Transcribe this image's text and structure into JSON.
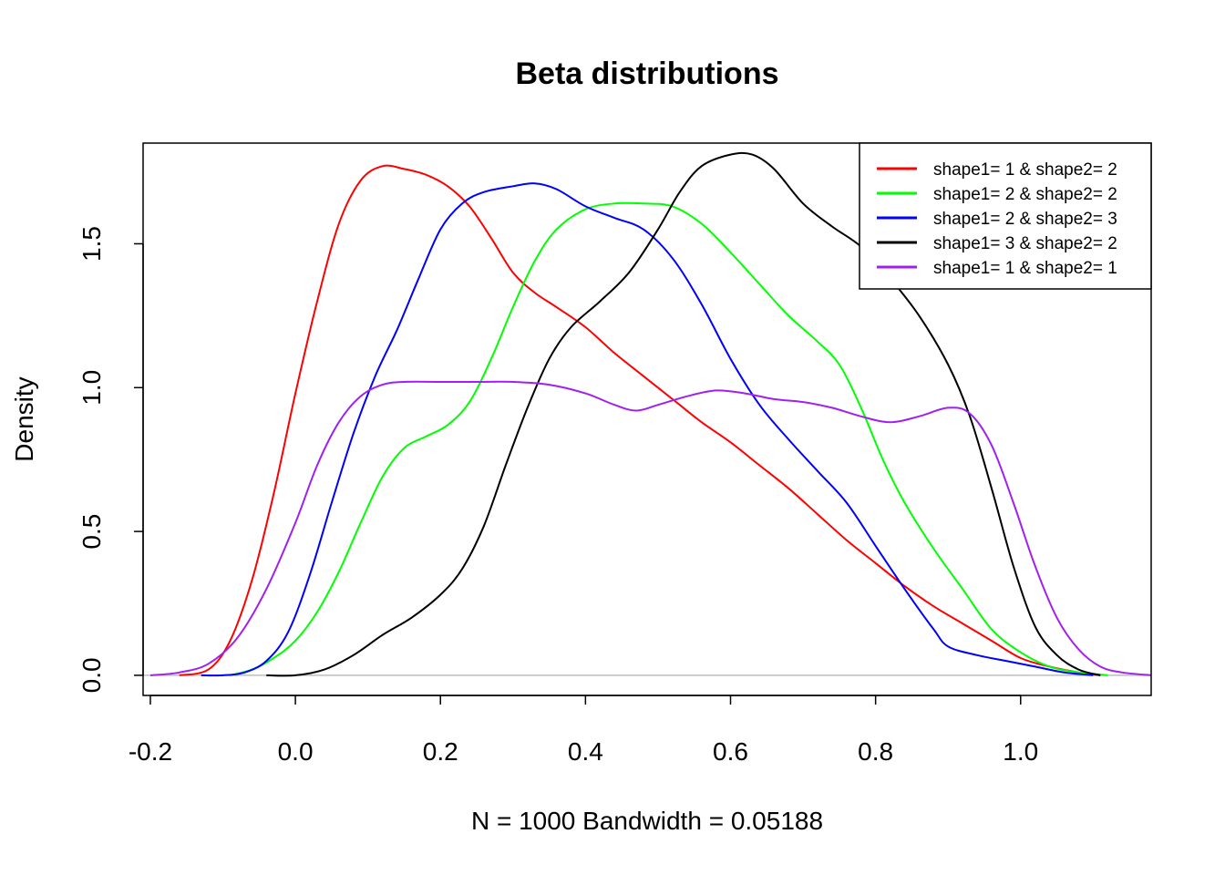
{
  "chart_data": {
    "type": "line",
    "title": "Beta distributions",
    "xlabel": "N = 1000   Bandwidth = 0.05188",
    "ylabel": "Density",
    "xlim": [
      -0.21,
      1.18
    ],
    "ylim": [
      -0.07,
      1.85
    ],
    "xticks": [
      -0.2,
      0.0,
      0.2,
      0.4,
      0.6,
      0.8,
      1.0
    ],
    "xtick_labels": [
      "-0.2",
      "0.0",
      "0.2",
      "0.4",
      "0.6",
      "0.8",
      "1.0"
    ],
    "yticks": [
      0.0,
      0.5,
      1.0,
      1.5
    ],
    "ytick_labels": [
      "0.0",
      "0.5",
      "1.0",
      "1.5"
    ],
    "baseline": 0,
    "grid": false,
    "legend_position": "top-right",
    "series": [
      {
        "name": "shape1= 1 & shape2= 2",
        "color": "#ff0000",
        "points": [
          [
            -0.16,
            0
          ],
          [
            -0.12,
            0.02
          ],
          [
            -0.09,
            0.12
          ],
          [
            -0.06,
            0.33
          ],
          [
            -0.03,
            0.63
          ],
          [
            0.0,
            0.98
          ],
          [
            0.03,
            1.3
          ],
          [
            0.06,
            1.57
          ],
          [
            0.09,
            1.72
          ],
          [
            0.12,
            1.77
          ],
          [
            0.15,
            1.76
          ],
          [
            0.18,
            1.74
          ],
          [
            0.21,
            1.7
          ],
          [
            0.24,
            1.63
          ],
          [
            0.27,
            1.52
          ],
          [
            0.3,
            1.4
          ],
          [
            0.33,
            1.33
          ],
          [
            0.36,
            1.28
          ],
          [
            0.4,
            1.21
          ],
          [
            0.44,
            1.12
          ],
          [
            0.48,
            1.04
          ],
          [
            0.52,
            0.96
          ],
          [
            0.56,
            0.88
          ],
          [
            0.6,
            0.81
          ],
          [
            0.64,
            0.73
          ],
          [
            0.68,
            0.65
          ],
          [
            0.72,
            0.56
          ],
          [
            0.76,
            0.47
          ],
          [
            0.8,
            0.39
          ],
          [
            0.84,
            0.31
          ],
          [
            0.88,
            0.24
          ],
          [
            0.92,
            0.18
          ],
          [
            0.96,
            0.12
          ],
          [
            1.0,
            0.06
          ],
          [
            1.04,
            0.03
          ],
          [
            1.08,
            0.01
          ],
          [
            1.11,
            0
          ]
        ]
      },
      {
        "name": "shape1= 2 & shape2= 2",
        "color": "#00ff00",
        "points": [
          [
            -0.09,
            0
          ],
          [
            -0.06,
            0.02
          ],
          [
            -0.03,
            0.06
          ],
          [
            0.0,
            0.12
          ],
          [
            0.03,
            0.22
          ],
          [
            0.06,
            0.36
          ],
          [
            0.09,
            0.53
          ],
          [
            0.12,
            0.69
          ],
          [
            0.15,
            0.79
          ],
          [
            0.18,
            0.83
          ],
          [
            0.21,
            0.87
          ],
          [
            0.24,
            0.95
          ],
          [
            0.27,
            1.1
          ],
          [
            0.3,
            1.28
          ],
          [
            0.33,
            1.44
          ],
          [
            0.36,
            1.55
          ],
          [
            0.4,
            1.62
          ],
          [
            0.44,
            1.64
          ],
          [
            0.48,
            1.64
          ],
          [
            0.52,
            1.63
          ],
          [
            0.56,
            1.57
          ],
          [
            0.6,
            1.47
          ],
          [
            0.64,
            1.36
          ],
          [
            0.68,
            1.25
          ],
          [
            0.72,
            1.16
          ],
          [
            0.75,
            1.08
          ],
          [
            0.78,
            0.93
          ],
          [
            0.81,
            0.75
          ],
          [
            0.84,
            0.6
          ],
          [
            0.88,
            0.44
          ],
          [
            0.92,
            0.3
          ],
          [
            0.96,
            0.16
          ],
          [
            1.0,
            0.08
          ],
          [
            1.04,
            0.03
          ],
          [
            1.08,
            0.01
          ],
          [
            1.12,
            0
          ]
        ]
      },
      {
        "name": "shape1= 2 & shape2= 3",
        "color": "#0000ff",
        "points": [
          [
            -0.13,
            0
          ],
          [
            -0.1,
            0
          ],
          [
            -0.07,
            0.01
          ],
          [
            -0.04,
            0.05
          ],
          [
            -0.01,
            0.15
          ],
          [
            0.02,
            0.35
          ],
          [
            0.05,
            0.6
          ],
          [
            0.08,
            0.84
          ],
          [
            0.11,
            1.04
          ],
          [
            0.14,
            1.2
          ],
          [
            0.17,
            1.38
          ],
          [
            0.2,
            1.55
          ],
          [
            0.23,
            1.64
          ],
          [
            0.26,
            1.68
          ],
          [
            0.3,
            1.7
          ],
          [
            0.33,
            1.71
          ],
          [
            0.36,
            1.69
          ],
          [
            0.4,
            1.63
          ],
          [
            0.44,
            1.59
          ],
          [
            0.48,
            1.55
          ],
          [
            0.52,
            1.45
          ],
          [
            0.56,
            1.29
          ],
          [
            0.6,
            1.1
          ],
          [
            0.64,
            0.94
          ],
          [
            0.68,
            0.82
          ],
          [
            0.72,
            0.71
          ],
          [
            0.76,
            0.6
          ],
          [
            0.8,
            0.45
          ],
          [
            0.84,
            0.3
          ],
          [
            0.88,
            0.16
          ],
          [
            0.9,
            0.1
          ],
          [
            0.94,
            0.07
          ],
          [
            0.98,
            0.05
          ],
          [
            1.02,
            0.03
          ],
          [
            1.06,
            0.01
          ],
          [
            1.1,
            0
          ]
        ]
      },
      {
        "name": "shape1= 3 & shape2= 2",
        "color": "#000000",
        "points": [
          [
            -0.04,
            0
          ],
          [
            0.0,
            0
          ],
          [
            0.04,
            0.02
          ],
          [
            0.08,
            0.07
          ],
          [
            0.12,
            0.14
          ],
          [
            0.16,
            0.2
          ],
          [
            0.2,
            0.28
          ],
          [
            0.23,
            0.37
          ],
          [
            0.26,
            0.52
          ],
          [
            0.29,
            0.73
          ],
          [
            0.32,
            0.93
          ],
          [
            0.35,
            1.1
          ],
          [
            0.38,
            1.21
          ],
          [
            0.42,
            1.3
          ],
          [
            0.46,
            1.4
          ],
          [
            0.5,
            1.55
          ],
          [
            0.53,
            1.68
          ],
          [
            0.56,
            1.77
          ],
          [
            0.6,
            1.81
          ],
          [
            0.63,
            1.81
          ],
          [
            0.66,
            1.76
          ],
          [
            0.7,
            1.64
          ],
          [
            0.74,
            1.56
          ],
          [
            0.78,
            1.49
          ],
          [
            0.82,
            1.38
          ],
          [
            0.86,
            1.25
          ],
          [
            0.9,
            1.08
          ],
          [
            0.93,
            0.9
          ],
          [
            0.96,
            0.65
          ],
          [
            0.99,
            0.38
          ],
          [
            1.02,
            0.17
          ],
          [
            1.05,
            0.07
          ],
          [
            1.08,
            0.02
          ],
          [
            1.11,
            0
          ]
        ]
      },
      {
        "name": "shape1= 1 & shape2= 1",
        "color": "#a020f0",
        "points": [
          [
            -0.2,
            0
          ],
          [
            -0.16,
            0.01
          ],
          [
            -0.12,
            0.04
          ],
          [
            -0.08,
            0.13
          ],
          [
            -0.04,
            0.3
          ],
          [
            0.0,
            0.53
          ],
          [
            0.03,
            0.73
          ],
          [
            0.06,
            0.88
          ],
          [
            0.09,
            0.97
          ],
          [
            0.12,
            1.01
          ],
          [
            0.15,
            1.02
          ],
          [
            0.2,
            1.02
          ],
          [
            0.25,
            1.02
          ],
          [
            0.3,
            1.02
          ],
          [
            0.35,
            1.01
          ],
          [
            0.4,
            0.98
          ],
          [
            0.44,
            0.94
          ],
          [
            0.47,
            0.92
          ],
          [
            0.5,
            0.94
          ],
          [
            0.54,
            0.97
          ],
          [
            0.58,
            0.99
          ],
          [
            0.62,
            0.98
          ],
          [
            0.66,
            0.96
          ],
          [
            0.7,
            0.95
          ],
          [
            0.74,
            0.93
          ],
          [
            0.78,
            0.9
          ],
          [
            0.82,
            0.88
          ],
          [
            0.86,
            0.9
          ],
          [
            0.9,
            0.93
          ],
          [
            0.93,
            0.91
          ],
          [
            0.96,
            0.8
          ],
          [
            0.99,
            0.6
          ],
          [
            1.02,
            0.38
          ],
          [
            1.05,
            0.2
          ],
          [
            1.08,
            0.09
          ],
          [
            1.11,
            0.03
          ],
          [
            1.14,
            0.01
          ],
          [
            1.18,
            0
          ]
        ]
      }
    ]
  }
}
